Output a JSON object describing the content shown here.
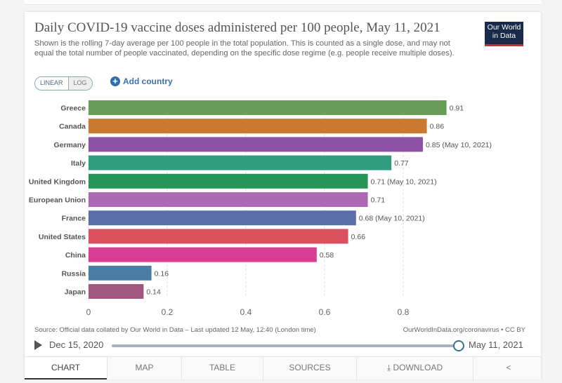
{
  "header": {
    "title": "Daily COVID-19 vaccine doses administered per 100 people, May 11, 2021",
    "subtitle": "Shown is the rolling 7-day average per 100 people in the total population. This is counted as a single dose, and may not equal the total number of people vaccinated, depending on the specific dose regime (e.g. people receive multiple doses).",
    "logo": "Our World in Data"
  },
  "controls": {
    "linear": "LINEAR",
    "log": "LOG",
    "scale_selected": "LINEAR",
    "add_country": "Add country"
  },
  "chart_data": {
    "type": "bar",
    "orientation": "horizontal",
    "categories": [
      "Greece",
      "Canada",
      "Germany",
      "Italy",
      "United Kingdom",
      "European Union",
      "France",
      "United States",
      "China",
      "Russia",
      "Japan"
    ],
    "values": [
      0.91,
      0.86,
      0.85,
      0.77,
      0.71,
      0.71,
      0.68,
      0.66,
      0.58,
      0.16,
      0.14
    ],
    "value_labels": [
      "0.91",
      "0.86",
      "0.85 (May 10, 2021)",
      "0.77",
      "0.71 (May 10, 2021)",
      "0.71",
      "0.68 (May 10, 2021)",
      "0.66",
      "0.58",
      "0.16",
      "0.14"
    ],
    "colors": [
      "#6b9d5a",
      "#c97a30",
      "#8d52a6",
      "#2f9e80",
      "#279558",
      "#ad69b4",
      "#5a6ea8",
      "#d9505f",
      "#d83c93",
      "#4a7da6",
      "#a2577e"
    ],
    "xticks": [
      0,
      0.2,
      0.4,
      0.6,
      0.8
    ],
    "xtick_labels": [
      "0",
      "0.2",
      "0.4",
      "0.6",
      "0.8"
    ],
    "xlim": [
      0,
      0.8
    ],
    "grid": true
  },
  "footer": {
    "source": "Source: Official data collated by Our World in Data – Last updated 12 May, 12:40 (London time)",
    "license": "OurWorldInData.org/coronavirus • CC BY"
  },
  "timeline": {
    "start": "Dec 15, 2020",
    "end": "May 11, 2021",
    "position": 1.0
  },
  "tabs": [
    {
      "label": "CHART",
      "active": true
    },
    {
      "label": "MAP"
    },
    {
      "label": "TABLE"
    },
    {
      "label": "SOURCES"
    },
    {
      "label": "DOWNLOAD"
    },
    {
      "label": ""
    }
  ]
}
